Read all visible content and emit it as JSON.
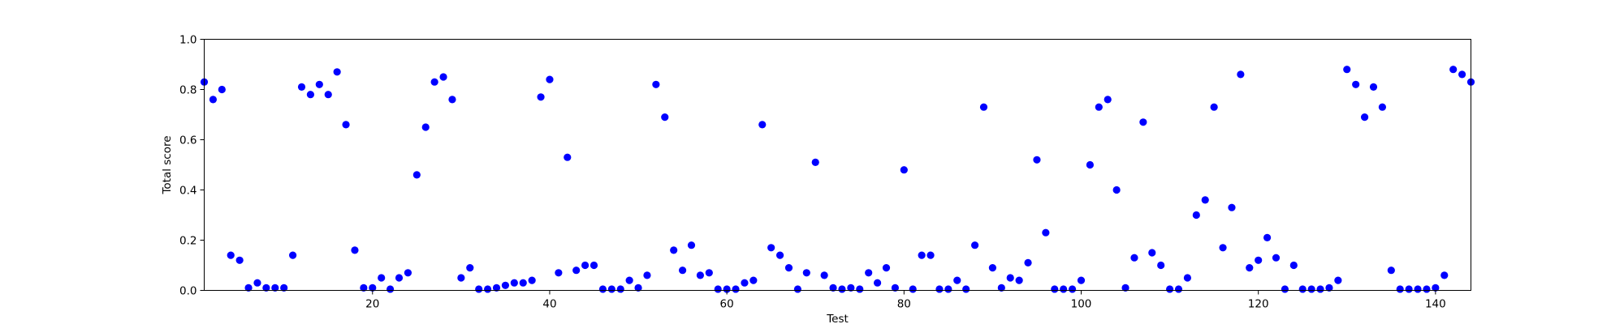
{
  "chart_data": {
    "type": "scatter",
    "title": "",
    "xlabel": "Test",
    "ylabel": "Total score",
    "xlim": [
      1,
      144
    ],
    "ylim": [
      0.0,
      1.0
    ],
    "grid": false,
    "marker_color": "#0000ff",
    "x_ticks": [
      20,
      40,
      60,
      80,
      100,
      120,
      140
    ],
    "x_tick_labels": [
      "20",
      "40",
      "60",
      "80",
      "100",
      "120",
      "140"
    ],
    "y_ticks": [
      0.0,
      0.2,
      0.4,
      0.6,
      0.8,
      1.0
    ],
    "y_tick_labels": [
      "0.0",
      "0.2",
      "0.4",
      "0.6",
      "0.8",
      "1.0"
    ],
    "series": [
      {
        "x": [
          1,
          2,
          3,
          4,
          5,
          6,
          7,
          8,
          9,
          10,
          11,
          12,
          13,
          14,
          15,
          16,
          17,
          18,
          19,
          20,
          21,
          22,
          23,
          24,
          25,
          26,
          27,
          28,
          29,
          30,
          31,
          32,
          33,
          34,
          35,
          36,
          37,
          38,
          39,
          40,
          41,
          42,
          43,
          44,
          45,
          46,
          47,
          48,
          49,
          50,
          51,
          52,
          53,
          54,
          55,
          56,
          57,
          58,
          59,
          60,
          61,
          62,
          63,
          64,
          65,
          66,
          67,
          68,
          69,
          70,
          71,
          72,
          73,
          74,
          75,
          76,
          77,
          78,
          79,
          80,
          81,
          82,
          83,
          84,
          85,
          86,
          87,
          88,
          89,
          90,
          91,
          92,
          93,
          94,
          95,
          96,
          97,
          98,
          99,
          100,
          101,
          102,
          103,
          104,
          105,
          106,
          107,
          108,
          109,
          110,
          111,
          112,
          113,
          114,
          115,
          116,
          117,
          118,
          119,
          120,
          121,
          122,
          123,
          124,
          125,
          126,
          127,
          128,
          129,
          130,
          131,
          132,
          133,
          134,
          135,
          136,
          137,
          138,
          139,
          140,
          141,
          142,
          143,
          144
        ],
        "y": [
          0.83,
          0.76,
          0.8,
          0.14,
          0.12,
          0.01,
          0.03,
          0.01,
          0.01,
          0.01,
          0.14,
          0.81,
          0.78,
          0.82,
          0.78,
          0.87,
          0.66,
          0.16,
          0.01,
          0.01,
          0.05,
          0.005,
          0.05,
          0.07,
          0.46,
          0.65,
          0.83,
          0.85,
          0.76,
          0.05,
          0.09,
          0.005,
          0.005,
          0.01,
          0.02,
          0.03,
          0.03,
          0.04,
          0.77,
          0.84,
          0.07,
          0.53,
          0.08,
          0.1,
          0.1,
          0.005,
          0.005,
          0.005,
          0.04,
          0.01,
          0.06,
          0.82,
          0.69,
          0.16,
          0.08,
          0.18,
          0.06,
          0.07,
          0.005,
          0.005,
          0.005,
          0.03,
          0.04,
          0.66,
          0.17,
          0.14,
          0.09,
          0.005,
          0.07,
          0.51,
          0.06,
          0.01,
          0.005,
          0.01,
          0.005,
          0.07,
          0.03,
          0.09,
          0.01,
          0.48,
          0.005,
          0.14,
          0.14,
          0.005,
          0.005,
          0.04,
          0.005,
          0.18,
          0.73,
          0.09,
          0.01,
          0.05,
          0.04,
          0.11,
          0.52,
          0.23,
          0.005,
          0.005,
          0.005,
          0.04,
          0.5,
          0.73,
          0.76,
          0.4,
          0.01,
          0.13,
          0.67,
          0.15,
          0.1,
          0.005,
          0.005,
          0.05,
          0.3,
          0.36,
          0.73,
          0.17,
          0.33,
          0.86,
          0.09,
          0.12,
          0.21,
          0.13,
          0.005,
          0.1,
          0.005,
          0.005,
          0.005,
          0.01,
          0.04,
          0.88,
          0.82,
          0.69,
          0.81,
          0.73,
          0.08,
          0.005,
          0.005,
          0.005,
          0.005,
          0.01,
          0.06,
          0.88,
          0.86,
          0.83
        ]
      }
    ]
  }
}
